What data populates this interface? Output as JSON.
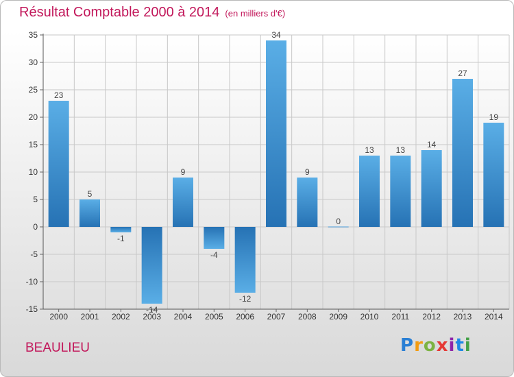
{
  "header": {
    "title": "Résultat Comptable 2000 à 2014",
    "subtitle": "(en milliers d'€)"
  },
  "footer": {
    "town": "BEAULIEU",
    "logo": "Proxiti"
  },
  "colors": {
    "title": "#c2185b",
    "bar_light": "#5aaee6",
    "bar_dark": "#2672b4",
    "grid": "#c8c8c8"
  },
  "chart_data": {
    "type": "bar",
    "title": "Résultat Comptable 2000 à 2014",
    "subtitle": "(en milliers d'€)",
    "categories": [
      "2000",
      "2001",
      "2002",
      "2003",
      "2004",
      "2005",
      "2006",
      "2007",
      "2008",
      "2009",
      "2010",
      "2011",
      "2012",
      "2013",
      "2014"
    ],
    "values": [
      23,
      5,
      -1,
      -14,
      9,
      -4,
      -12,
      34,
      9,
      0,
      13,
      13,
      14,
      27,
      19
    ],
    "data_labels": [
      "23",
      "5",
      "-1",
      "-14",
      "9",
      "-4",
      "-12",
      "34",
      "9",
      "0",
      "13",
      "13",
      "14",
      "27",
      "19"
    ],
    "y_ticks": [
      -15,
      -10,
      -5,
      0,
      5,
      10,
      15,
      20,
      25,
      30,
      35
    ],
    "ylim": [
      -15,
      35
    ],
    "grid": true,
    "legend": "none",
    "xlabel": "",
    "ylabel": ""
  }
}
